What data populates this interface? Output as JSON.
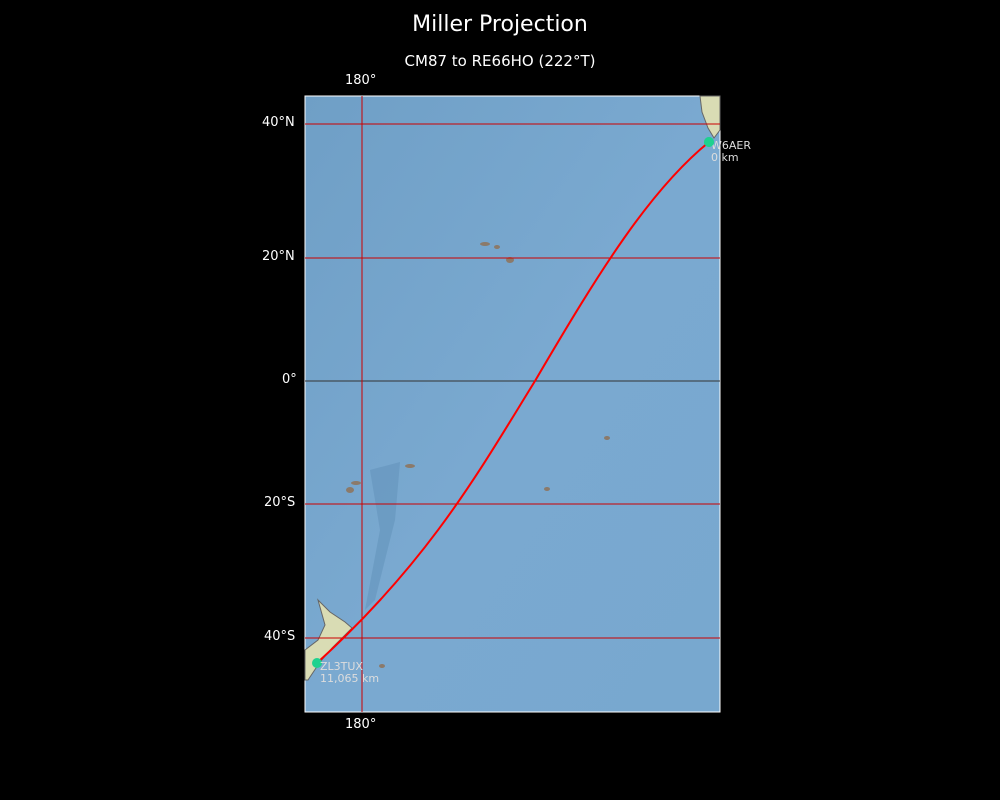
{
  "title": "Miller Projection",
  "subtitle": "CM87 to RE66HO (222°T)",
  "projection": "Miller",
  "axes": {
    "lon_top": "180°",
    "lon_bottom": "180°",
    "lat_labels": [
      "40°N",
      "20°N",
      "0°",
      "20°S",
      "40°S"
    ]
  },
  "stations": [
    {
      "call": "W6AER",
      "distance": "0 km",
      "grid": "CM87"
    },
    {
      "call": "ZL3TUX",
      "distance": "11,065 km",
      "grid": "RE66HO"
    }
  ],
  "bearing": "222°T",
  "colors": {
    "path": "#ff0000",
    "grid": "#cc0000",
    "marker": "#1fd18f",
    "ocean": "#7aa9cf"
  }
}
